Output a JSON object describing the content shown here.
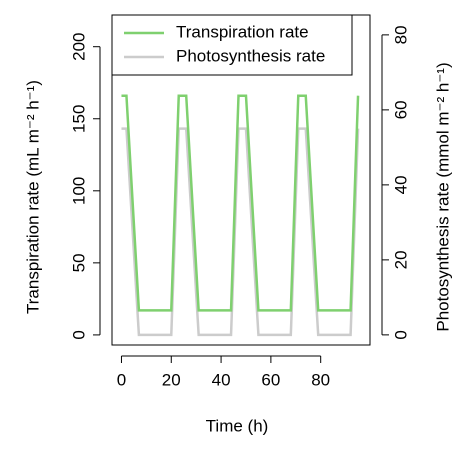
{
  "chart_data": {
    "type": "line",
    "x_label": "Time (h)",
    "y_label": "Transpiration rate (mL m⁻² h⁻¹)",
    "y2_label": "Photosynthesis rate (mmol m⁻² h⁻¹)",
    "x": [
      0,
      2,
      7,
      20,
      23,
      26,
      31,
      44,
      47,
      50,
      55,
      68,
      71,
      74,
      79,
      92,
      95
    ],
    "series": [
      {
        "name": "Transpiration rate",
        "color": "#7fd06f",
        "values": [
          166,
          166,
          17,
          17,
          166,
          166,
          17,
          17,
          166,
          166,
          17,
          17,
          166,
          166,
          17,
          17,
          166
        ]
      },
      {
        "name": "Photosynthesis rate",
        "color": "#cccccc",
        "axis": "y2",
        "values": [
          55,
          55,
          0,
          0,
          55,
          55,
          0,
          0,
          55,
          55,
          0,
          0,
          55,
          55,
          0,
          0,
          55
        ]
      }
    ],
    "xlim": [
      -3.8,
      99.8
    ],
    "xticks": [
      0,
      20,
      40,
      60,
      80
    ],
    "ylim": [
      -7,
      222
    ],
    "yticks": [
      0,
      50,
      100,
      150,
      200
    ],
    "y2lim": [
      -2.7,
      85.3
    ],
    "y2ticks": [
      0,
      20,
      40,
      60,
      80
    ],
    "legend": "top-left"
  }
}
